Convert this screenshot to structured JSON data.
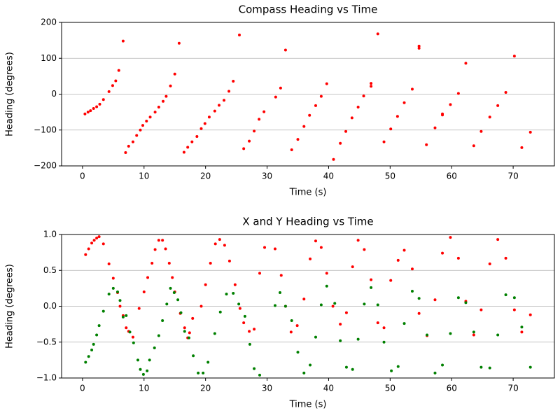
{
  "chart_data": [
    {
      "type": "scatter",
      "title": "Compass Heading vs Time",
      "x_label": "Time (s)",
      "y_label": "Heading (degrees)",
      "xlim": [
        -3.4,
        76.7
      ],
      "xticks": [
        0,
        10,
        20,
        30,
        40,
        50,
        60,
        70
      ],
      "ylim": [
        -200,
        200
      ],
      "yticks": [
        {
          "value": -200,
          "label": "−200"
        },
        {
          "value": -100,
          "label": "−100"
        },
        0,
        100,
        200
      ],
      "grid": true,
      "series": [
        {
          "color": "red",
          "x": [
            0.4,
            0.9,
            1.3,
            1.8,
            2.3,
            2.8,
            3.4,
            4.3,
            4.9,
            5.4,
            5.9,
            6.6,
            7.0,
            7.5,
            8.2,
            8.8,
            9.4,
            9.8,
            10.4,
            11.0,
            11.8,
            12.4,
            13.1,
            13.6,
            14.3,
            15.0,
            15.7,
            16.5,
            17.1,
            17.8,
            18.6,
            19.3,
            19.9,
            20.6,
            21.5,
            22.2,
            23.0,
            23.8,
            24.5,
            25.5,
            26.2,
            27.1,
            27.9,
            28.7,
            29.5,
            31.4,
            32.2,
            33.0,
            34.0,
            35.0,
            36.0,
            36.9,
            37.9,
            38.8,
            39.7,
            40.8,
            41.9,
            42.8,
            43.8,
            44.8,
            45.7,
            46.9,
            46.9,
            48.0,
            49.0,
            50.1,
            51.2,
            52.3,
            53.6,
            54.7,
            54.7,
            55.9,
            57.3,
            58.5,
            58.5,
            59.8,
            61.1,
            62.3,
            63.6,
            64.8,
            66.2,
            67.5,
            68.8,
            70.2,
            71.4,
            72.8
          ],
          "values": [
            -55,
            -50,
            -46,
            -40,
            -35,
            -28,
            -15,
            7,
            24,
            37,
            66,
            148,
            -163,
            -145,
            -133,
            -115,
            -100,
            -87,
            -75,
            -64,
            -50,
            -36,
            -20,
            -6,
            23,
            56,
            142,
            -162,
            -148,
            -133,
            -118,
            -96,
            -82,
            -64,
            -47,
            -31,
            -17,
            8,
            36,
            165,
            -152,
            -131,
            -103,
            -70,
            -49,
            -8,
            17,
            123,
            -155,
            -126,
            -90,
            -59,
            -32,
            -6,
            29,
            -182,
            -137,
            -104,
            -66,
            -36,
            -5,
            22,
            30,
            168,
            -133,
            -97,
            -62,
            -24,
            14,
            128,
            134,
            -141,
            -94,
            -58,
            -55,
            -29,
            2,
            86,
            -144,
            -104,
            -64,
            -32,
            5,
            106,
            -149,
            -106
          ]
        }
      ]
    },
    {
      "type": "scatter",
      "title": "X and Y Heading vs Time",
      "x_label": "Time (s)",
      "y_label": "Heading (degrees)",
      "xlim": [
        -3.4,
        76.7
      ],
      "xticks": [
        0,
        10,
        20,
        30,
        40,
        50,
        60,
        70
      ],
      "ylim": [
        -1,
        1
      ],
      "yticks": [
        {
          "value": -1,
          "label": "−1.0"
        },
        {
          "value": -0.5,
          "label": "−0.5"
        },
        {
          "value": 0,
          "label": "0.0"
        },
        0.5,
        {
          "value": 1,
          "label": "1.0"
        }
      ],
      "grid": true,
      "series": [
        {
          "color": "red",
          "x": [
            0.5,
            1.0,
            1.5,
            1.9,
            2.3,
            2.7,
            3.4,
            4.3,
            5.0,
            5.7,
            6.1,
            6.6,
            7.1,
            7.5,
            8.2,
            9.2,
            10.0,
            10.6,
            11.3,
            11.8,
            12.4,
            13.0,
            13.5,
            14.1,
            14.6,
            15.0,
            15.9,
            16.6,
            17.1,
            17.4,
            17.9,
            19.3,
            20.0,
            20.8,
            21.6,
            22.3,
            23.1,
            23.9,
            24.8,
            25.6,
            26.2,
            27.1,
            27.9,
            28.8,
            29.6,
            31.3,
            32.3,
            33.0,
            33.9,
            34.9,
            36.0,
            37.0,
            37.9,
            38.8,
            39.7,
            40.7,
            41.9,
            42.9,
            43.9,
            44.8,
            45.8,
            46.9,
            48.0,
            49.0,
            50.1,
            51.3,
            52.3,
            53.6,
            54.7,
            56.0,
            57.3,
            58.5,
            59.8,
            61.1,
            62.3,
            63.6,
            64.8,
            66.2,
            67.5,
            68.8,
            70.2,
            71.4,
            72.8
          ],
          "values": [
            0.72,
            0.8,
            0.88,
            0.92,
            0.95,
            0.97,
            0.87,
            0.59,
            0.39,
            0.19,
            0,
            -0.13,
            -0.3,
            -0.35,
            -0.43,
            -0.03,
            0.2,
            0.4,
            0.6,
            0.79,
            0.92,
            0.92,
            0.8,
            0.6,
            0.4,
            0.2,
            -0.1,
            -0.3,
            -0.44,
            -0.37,
            -0.17,
            0,
            0.3,
            0.6,
            0.87,
            0.93,
            0.85,
            0.63,
            0.3,
            -0.03,
            -0.23,
            -0.35,
            -0.32,
            0.46,
            0.82,
            0.8,
            0.43,
            0,
            -0.36,
            -0.27,
            0.1,
            0.66,
            0.91,
            0.82,
            0.46,
            0,
            -0.25,
            -0.09,
            0.55,
            0.92,
            0.79,
            0.37,
            -0.23,
            -0.3,
            0.36,
            0.64,
            0.78,
            0.52,
            -0.1,
            -0.41,
            0.09,
            0.74,
            0.96,
            0.67,
            0.07,
            -0.4,
            -0.05,
            0.59,
            0.93,
            0.67,
            -0.05,
            -0.36,
            -0.12
          ]
        },
        {
          "color": "green",
          "x": [
            0.5,
            1.0,
            1.5,
            1.8,
            2.3,
            2.7,
            3.4,
            4.3,
            5.0,
            5.7,
            6.1,
            6.6,
            7.1,
            7.7,
            8.3,
            9.0,
            9.4,
            9.9,
            10.5,
            10.9,
            11.7,
            12.4,
            13.0,
            13.7,
            14.3,
            14.9,
            15.5,
            16.0,
            16.6,
            17.3,
            18.0,
            18.8,
            19.6,
            20.4,
            21.5,
            22.4,
            23.4,
            24.5,
            25.4,
            26.4,
            27.2,
            27.9,
            28.8,
            31.3,
            32.1,
            33.0,
            34.0,
            35.0,
            36.0,
            37.0,
            37.9,
            38.8,
            39.7,
            41.0,
            41.9,
            42.9,
            43.9,
            44.8,
            45.8,
            46.9,
            48.0,
            49.0,
            50.2,
            51.3,
            52.3,
            53.6,
            54.7,
            56.0,
            57.3,
            58.5,
            59.8,
            61.1,
            62.3,
            63.6,
            64.8,
            66.2,
            67.5,
            68.8,
            70.2,
            71.4,
            72.8
          ],
          "values": [
            -0.78,
            -0.7,
            -0.61,
            -0.53,
            -0.4,
            -0.27,
            -0.07,
            0.17,
            0.25,
            0.2,
            0.08,
            -0.15,
            -0.13,
            -0.36,
            -0.51,
            -0.75,
            -0.88,
            -0.95,
            -0.9,
            -0.75,
            -0.58,
            -0.41,
            -0.2,
            0.03,
            0.25,
            0.19,
            0.09,
            -0.09,
            -0.35,
            -0.44,
            -0.69,
            -0.93,
            -0.93,
            -0.78,
            -0.38,
            -0.08,
            0.17,
            0.18,
            0.03,
            -0.14,
            -0.53,
            -0.87,
            -0.96,
            0.01,
            0.19,
            0,
            -0.2,
            -0.64,
            -0.93,
            -0.82,
            -0.43,
            0.02,
            0.28,
            0.04,
            -0.48,
            -0.85,
            -0.88,
            -0.46,
            0.03,
            0.26,
            0.02,
            -0.5,
            -0.9,
            -0.84,
            -0.24,
            0.21,
            0.11,
            -0.4,
            -0.93,
            -0.82,
            -0.38,
            0.12,
            0.05,
            -0.36,
            -0.85,
            -0.86,
            -0.4,
            0.16,
            0.12,
            -0.29,
            -0.85
          ]
        }
      ]
    }
  ]
}
